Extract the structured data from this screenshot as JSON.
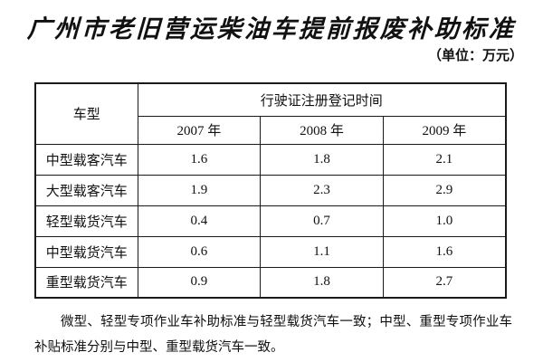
{
  "title": "广州市老旧营运柴油车提前报废补助标准",
  "unit_note": "（单位：万元）",
  "table": {
    "vehicle_type_header": "车型",
    "registration_time_header": "行驶证注册登记时间",
    "year_headers": [
      "2007 年",
      "2008 年",
      "2009 年"
    ],
    "rows": [
      {
        "type": "中型载客汽车",
        "values": [
          "1.6",
          "1.8",
          "2.1"
        ]
      },
      {
        "type": "大型载客汽车",
        "values": [
          "1.9",
          "2.3",
          "2.9"
        ]
      },
      {
        "type": "轻型载货汽车",
        "values": [
          "0.4",
          "0.7",
          "1.0"
        ]
      },
      {
        "type": "中型载货汽车",
        "values": [
          "0.6",
          "1.1",
          "1.6"
        ]
      },
      {
        "type": "重型载货汽车",
        "values": [
          "0.9",
          "1.8",
          "2.7"
        ]
      }
    ]
  },
  "footnote": "微型、轻型专项作业车补助标准与轻型载货汽车一致；中型、重型专项作业车补贴标准分别与中型、重型载货汽车一致。"
}
